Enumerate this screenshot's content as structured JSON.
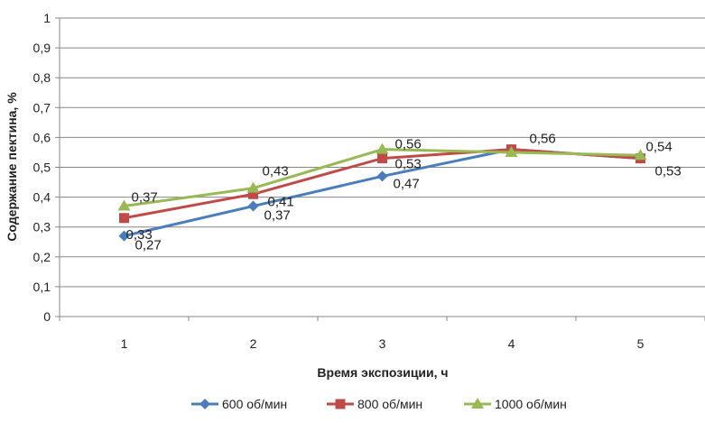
{
  "chart_data": {
    "type": "line",
    "categories": [
      "1",
      "2",
      "3",
      "4",
      "5"
    ],
    "ylim": [
      0,
      1
    ],
    "yticks": [
      "0",
      "0,1",
      "0,2",
      "0,3",
      "0,4",
      "0,5",
      "0,6",
      "0,7",
      "0,8",
      "0,9",
      "1"
    ],
    "xlabel": "Время экспозиции, ч",
    "ylabel": "Содержание пектина, %",
    "grid": true,
    "legend_position": "bottom",
    "series": [
      {
        "name": "600 об/мин",
        "color": "#4a7ebb",
        "marker": "diamond",
        "values": [
          0.27,
          0.37,
          0.47,
          0.56,
          0.53
        ],
        "labels": [
          "0,27",
          "0,37",
          "0,47",
          "",
          ""
        ]
      },
      {
        "name": "800 об/мин",
        "color": "#be4b48",
        "marker": "square",
        "values": [
          0.33,
          0.41,
          0.53,
          0.56,
          0.53
        ],
        "labels": [
          "0,33",
          "0,41",
          "0,53",
          "0,56",
          "0,53"
        ]
      },
      {
        "name": "1000 об/мин",
        "color": "#98b954",
        "marker": "triangle",
        "values": [
          0.37,
          0.43,
          0.56,
          0.55,
          0.54
        ],
        "labels": [
          "0,37",
          "0,43",
          "0,56",
          "",
          "0,54"
        ]
      }
    ]
  }
}
